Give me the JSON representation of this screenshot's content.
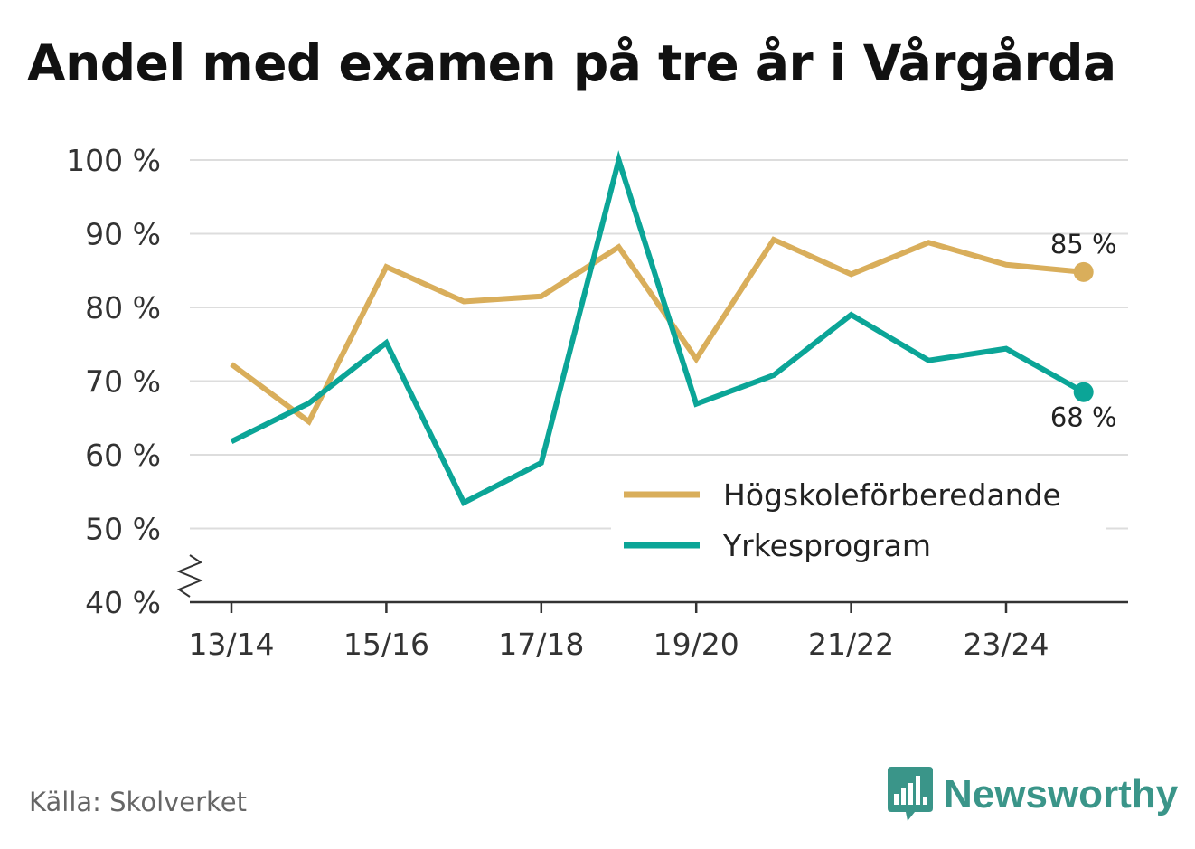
{
  "title": "Andel med examen på tre år i Vårgårda",
  "source": "Källa: Skolverket",
  "brand": {
    "name": "Newsworthy",
    "icon": "newsworthy-logo-icon",
    "color": "#3a9589"
  },
  "chart_data": {
    "type": "line",
    "title": "Andel med examen på tre år i Vårgårda",
    "x": [
      "13/14",
      "14/15",
      "15/16",
      "16/17",
      "17/18",
      "18/19",
      "19/20",
      "20/21",
      "21/22",
      "22/23",
      "23/24",
      "24/25"
    ],
    "x_tick_labels": [
      "13/14",
      "15/16",
      "17/18",
      "19/20",
      "21/22",
      "23/24"
    ],
    "y_ticks": [
      40,
      50,
      60,
      70,
      80,
      90,
      100
    ],
    "y_tick_labels": [
      "40 %",
      "50 %",
      "60 %",
      "70 %",
      "80 %",
      "90 %",
      "100 %"
    ],
    "ylim": [
      40,
      100
    ],
    "y_axis_break": true,
    "grid": true,
    "legend_position": "bottom-right",
    "series": [
      {
        "name": "Högskoleförberedande",
        "color": "#d9ae5b",
        "values": [
          72.3,
          64.5,
          85.5,
          80.8,
          81.5,
          88.2,
          73.0,
          89.2,
          84.5,
          88.8,
          85.8,
          84.8
        ],
        "end_label": "85 %"
      },
      {
        "name": "Yrkesprogram",
        "color": "#0ba597",
        "values": [
          61.8,
          67.0,
          75.2,
          53.5,
          58.9,
          100.0,
          66.9,
          70.8,
          79.0,
          72.8,
          74.4,
          68.5
        ],
        "end_label": "68 %"
      }
    ]
  }
}
